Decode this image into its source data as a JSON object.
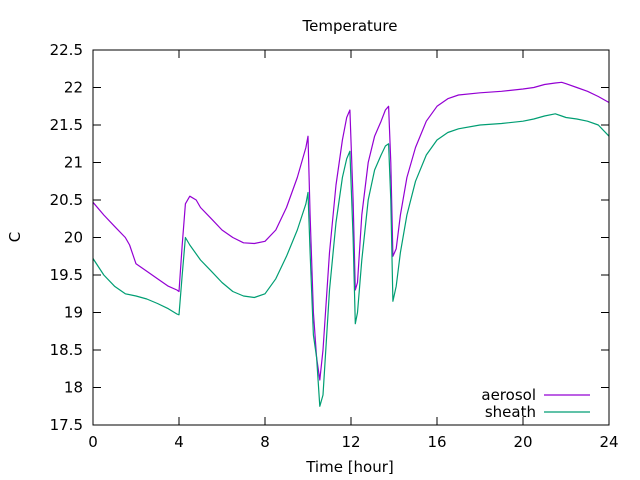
{
  "chart_data": {
    "type": "line",
    "title": "Temperature",
    "xlabel": "Time [hour]",
    "ylabel": "C",
    "xlim": [
      0,
      24
    ],
    "ylim": [
      17.5,
      22.5
    ],
    "x_ticks": [
      0,
      4,
      8,
      12,
      16,
      20,
      24
    ],
    "y_ticks": [
      17.5,
      18,
      18.5,
      19,
      19.5,
      20,
      20.5,
      21,
      21.5,
      22,
      22.5
    ],
    "legend_position": "bottom-right",
    "grid": false,
    "series": [
      {
        "name": "aerosol",
        "color": "#9400d3",
        "x": [
          0,
          0.5,
          1.0,
          1.5,
          1.7,
          2.0,
          2.5,
          3.0,
          3.5,
          3.9,
          4.0,
          4.15,
          4.3,
          4.5,
          4.8,
          5.0,
          5.5,
          6.0,
          6.5,
          7.0,
          7.5,
          8.0,
          8.5,
          9.0,
          9.5,
          9.9,
          10.0,
          10.1,
          10.25,
          10.4,
          10.55,
          10.7,
          11.0,
          11.3,
          11.6,
          11.8,
          11.95,
          12.1,
          12.2,
          12.3,
          12.5,
          12.8,
          13.1,
          13.4,
          13.6,
          13.75,
          13.85,
          13.95,
          14.1,
          14.3,
          14.6,
          15.0,
          15.5,
          16.0,
          16.5,
          17.0,
          18.0,
          19.0,
          20.0,
          20.5,
          21.0,
          21.5,
          21.8,
          22.0,
          22.5,
          23.0,
          23.5,
          24.0
        ],
        "values": [
          20.47,
          20.3,
          20.15,
          20.0,
          19.9,
          19.65,
          19.55,
          19.45,
          19.35,
          19.3,
          19.28,
          19.9,
          20.45,
          20.55,
          20.5,
          20.4,
          20.25,
          20.1,
          20.0,
          19.93,
          19.92,
          19.95,
          20.1,
          20.4,
          20.8,
          21.2,
          21.35,
          20.3,
          19.0,
          18.4,
          18.1,
          18.5,
          19.8,
          20.7,
          21.3,
          21.6,
          21.7,
          20.5,
          19.3,
          19.4,
          20.3,
          21.0,
          21.35,
          21.55,
          21.7,
          21.75,
          21.0,
          19.75,
          19.85,
          20.3,
          20.8,
          21.2,
          21.55,
          21.75,
          21.85,
          21.9,
          21.93,
          21.95,
          21.98,
          22.0,
          22.04,
          22.06,
          22.07,
          22.05,
          22.0,
          21.95,
          21.88,
          21.8
        ]
      },
      {
        "name": "sheath",
        "color": "#009e73",
        "x": [
          0,
          0.5,
          1.0,
          1.5,
          2.0,
          2.5,
          3.0,
          3.5,
          3.9,
          4.0,
          4.15,
          4.3,
          4.5,
          5.0,
          5.5,
          6.0,
          6.5,
          7.0,
          7.5,
          8.0,
          8.5,
          9.0,
          9.5,
          9.9,
          10.0,
          10.1,
          10.25,
          10.4,
          10.55,
          10.7,
          11.0,
          11.3,
          11.6,
          11.8,
          11.95,
          12.1,
          12.2,
          12.3,
          12.5,
          12.8,
          13.1,
          13.4,
          13.6,
          13.75,
          13.85,
          13.95,
          14.1,
          14.3,
          14.6,
          15.0,
          15.5,
          16.0,
          16.5,
          17.0,
          18.0,
          19.0,
          20.0,
          20.5,
          21.0,
          21.5,
          21.8,
          22.0,
          22.5,
          23.0,
          23.5,
          24.0
        ],
        "values": [
          19.72,
          19.5,
          19.35,
          19.25,
          19.22,
          19.18,
          19.12,
          19.05,
          18.98,
          18.97,
          19.5,
          20.0,
          19.9,
          19.7,
          19.55,
          19.4,
          19.28,
          19.22,
          19.2,
          19.25,
          19.45,
          19.75,
          20.1,
          20.45,
          20.6,
          19.8,
          18.7,
          18.4,
          17.75,
          17.9,
          19.3,
          20.2,
          20.8,
          21.05,
          21.15,
          20.0,
          18.85,
          19.0,
          19.7,
          20.5,
          20.9,
          21.1,
          21.22,
          21.25,
          20.5,
          19.15,
          19.35,
          19.8,
          20.3,
          20.75,
          21.1,
          21.3,
          21.4,
          21.45,
          21.5,
          21.52,
          21.55,
          21.58,
          21.62,
          21.65,
          21.62,
          21.6,
          21.58,
          21.55,
          21.5,
          21.35
        ]
      }
    ]
  }
}
